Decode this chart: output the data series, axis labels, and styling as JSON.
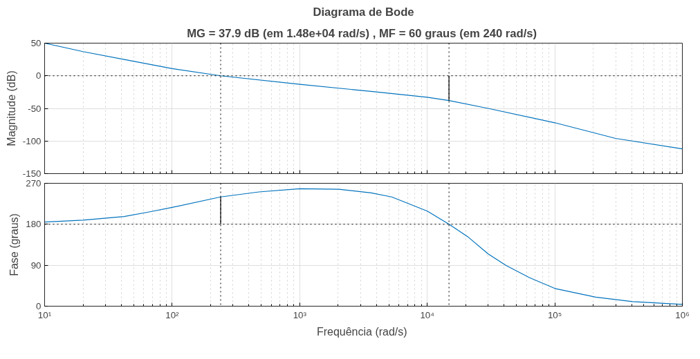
{
  "chart_data": [
    {
      "type": "line",
      "title": "Diagrama de Bode",
      "subtitle": "MG = 37.9 dB (em 1.48e+04 rad/s) ,  MF = 60 graus (em 240 rad/s)",
      "ylabel": "Magnitude (dB)",
      "log": "x",
      "xlim": [
        10,
        1000000
      ],
      "xticks": [
        {
          "value": 10,
          "label": null
        },
        {
          "value": 100,
          "label": null
        },
        {
          "value": 1000,
          "label": null
        },
        {
          "value": 10000,
          "label": null
        },
        {
          "value": 100000,
          "label": null
        },
        {
          "value": 1000000,
          "label": null
        }
      ],
      "ylim": [
        -150,
        50
      ],
      "yticks": [
        -150,
        -100,
        -50,
        0,
        50
      ],
      "grid": true,
      "tick_labels": "y",
      "line_style": "solid",
      "series": [
        {
          "color": "#0072bd",
          "x": [
            10,
            20,
            42,
            100,
            240,
            1000,
            3630,
            10000,
            14800,
            30000,
            100000,
            300000,
            1000000
          ],
          "values": [
            50,
            37,
            25,
            11,
            0,
            -13,
            -24,
            -33,
            -38,
            -50,
            -72,
            -96,
            -112
          ]
        },
        {
          "color": "#000000",
          "x": [
            14800,
            14800
          ],
          "values": [
            0,
            -38
          ]
        }
      ],
      "ref_lines": [
        {
          "axis": "y",
          "value": 0,
          "color": "#000000",
          "line_style": "dotted"
        },
        {
          "axis": "x",
          "value": 240,
          "color": "#000000",
          "line_style": "dotted"
        },
        {
          "axis": "x",
          "value": 14800,
          "color": "#000000",
          "line_style": "dotted"
        }
      ]
    },
    {
      "type": "line",
      "xlabel": "Frequência  (rad/s)",
      "ylabel": "Fase (graus)",
      "log": "x",
      "xlim": [
        10,
        1000000
      ],
      "xticks": [
        {
          "value": 10,
          "label": "10¹"
        },
        {
          "value": 100,
          "label": "10²"
        },
        {
          "value": 1000,
          "label": "10³"
        },
        {
          "value": 10000,
          "label": "10⁴"
        },
        {
          "value": 100000,
          "label": "10⁵"
        },
        {
          "value": 1000000,
          "label": "10⁶"
        }
      ],
      "ylim": [
        0,
        270
      ],
      "yticks": [
        0,
        90,
        180,
        270
      ],
      "grid": true,
      "line_style": "solid",
      "series": [
        {
          "color": "#0072bd",
          "x": [
            10,
            20,
            42,
            66,
            100,
            240,
            479,
            1000,
            2030,
            3630,
            5260,
            10000,
            14800,
            20700,
            30000,
            41700,
            63000,
            100000,
            209000,
            407000,
            1000000
          ],
          "values": [
            185,
            189,
            197,
            207,
            217,
            240,
            251,
            258,
            257,
            249,
            240,
            209,
            180,
            153,
            115,
            89,
            63,
            39,
            20,
            10,
            4
          ]
        },
        {
          "color": "#000000",
          "x": [
            240,
            240
          ],
          "values": [
            180,
            240
          ]
        }
      ],
      "ref_lines": [
        {
          "axis": "y",
          "value": 180,
          "color": "#000000",
          "line_style": "dotted"
        },
        {
          "axis": "x",
          "value": 240,
          "color": "#000000",
          "line_style": "dotted"
        },
        {
          "axis": "x",
          "value": 14800,
          "color": "#000000",
          "line_style": "dotted"
        }
      ]
    }
  ]
}
